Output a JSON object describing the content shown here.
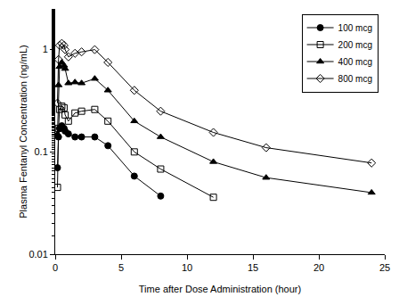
{
  "chart_data": {
    "type": "line",
    "x_label": "Time after Dose Administration (hour)",
    "y_label": "Plasma Fentanyl Concentration (ng/mL)",
    "log": "y",
    "legend": "top right",
    "grid": false,
    "xlim": [
      0,
      25
    ],
    "xticks": [
      0,
      5,
      10,
      15,
      20,
      25
    ],
    "ylim": [
      0.01,
      2.5
    ],
    "yticks": [
      0.01,
      0.1,
      1
    ],
    "series": [
      {
        "name": "100 mcg",
        "color": "#000000",
        "marker": "circle",
        "line_style": "solid",
        "x": [
          0.17,
          0.25,
          0.33,
          0.5,
          0.67,
          0.75,
          1,
          1.5,
          2,
          3,
          4,
          6,
          8
        ],
        "values": [
          0.07,
          0.14,
          0.17,
          0.18,
          0.17,
          0.16,
          0.15,
          0.14,
          0.14,
          0.14,
          0.115,
          0.058,
          0.037
        ]
      },
      {
        "name": "200 mcg",
        "color": "#000000",
        "marker": "square-open",
        "line_style": "solid",
        "x": [
          0.17,
          0.25,
          0.33,
          0.5,
          0.67,
          0.75,
          1,
          1.5,
          2,
          3,
          4,
          6,
          8,
          12
        ],
        "values": [
          0.045,
          0.17,
          0.26,
          0.28,
          0.27,
          0.23,
          0.2,
          0.24,
          0.25,
          0.26,
          0.2,
          0.1,
          0.068,
          0.036
        ]
      },
      {
        "name": "400 mcg",
        "color": "#000000",
        "marker": "triangle-up",
        "line_style": "solid",
        "x": [
          0.17,
          0.25,
          0.33,
          0.5,
          0.67,
          0.75,
          1,
          1.5,
          2,
          3,
          4,
          6,
          8,
          12,
          16,
          24
        ],
        "values": [
          0.15,
          0.45,
          0.68,
          0.75,
          0.7,
          0.65,
          0.47,
          0.48,
          0.47,
          0.52,
          0.4,
          0.2,
          0.14,
          0.08,
          0.056,
          0.04
        ]
      },
      {
        "name": "800 mcg",
        "color": "#000000",
        "marker": "diamond-open",
        "line_style": "solid",
        "x": [
          0.17,
          0.25,
          0.33,
          0.5,
          0.67,
          0.75,
          1,
          1.5,
          2,
          3,
          4,
          6,
          8,
          12,
          16,
          24
        ],
        "values": [
          0.3,
          0.8,
          1.1,
          1.15,
          1.1,
          1.0,
          0.85,
          0.92,
          0.95,
          1.0,
          0.75,
          0.4,
          0.25,
          0.155,
          0.11,
          0.078
        ]
      }
    ]
  }
}
